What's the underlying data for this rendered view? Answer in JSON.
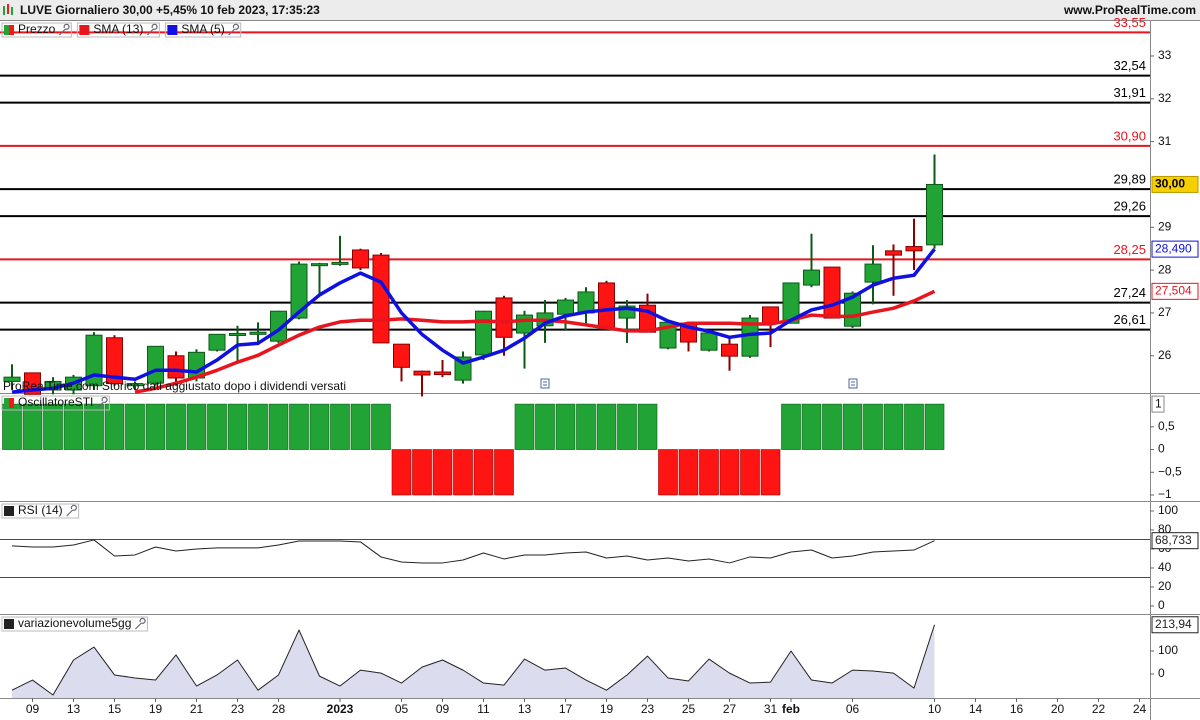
{
  "chart_data": [
    {
      "type": "candlestick",
      "title": "LUVE Giornaliero 30,00 +5,45% 10 feb 2023, 17:35:23",
      "source": "www.ProRealTime.com",
      "note": "ProRealTime.com Storico dati aggiustato dopo i dividendi versati",
      "ylim": [
        25.13,
        33.84
      ],
      "yticks": [
        26,
        27,
        28,
        29,
        31,
        32,
        33
      ],
      "levels": [
        {
          "value": 33.55,
          "label": "33,55",
          "color": "#e8141e"
        },
        {
          "value": 32.54,
          "label": "32,54",
          "color": "#000000"
        },
        {
          "value": 31.91,
          "label": "31,91",
          "color": "#000000"
        },
        {
          "value": 30.9,
          "label": "30,90",
          "color": "#e8141e"
        },
        {
          "value": 29.89,
          "label": "29,89",
          "color": "#000000"
        },
        {
          "value": 29.26,
          "label": "29,26",
          "color": "#000000"
        },
        {
          "value": 28.25,
          "label": "28,25",
          "color": "#e8141e"
        },
        {
          "value": 27.24,
          "label": "27,24",
          "color": "#000000"
        },
        {
          "value": 26.61,
          "label": "26,61",
          "color": "#000000"
        }
      ],
      "series": [
        {
          "name": "Prezzo",
          "up_color": "#22a336",
          "down_color": "#ff1414",
          "open": [
            25.4,
            25.6,
            25.2,
            25.2,
            25.3,
            26.42,
            25.3,
            25.36,
            26.0,
            25.48,
            26.13,
            26.48,
            26.5,
            26.34,
            26.88,
            28.12,
            28.14,
            28.47,
            28.35,
            26.27,
            25.64,
            25.62,
            25.43,
            26.02,
            27.35,
            26.53,
            26.7,
            26.97,
            27.0,
            27.7,
            26.88,
            27.18,
            26.18,
            26.76,
            26.13,
            26.27,
            25.99,
            27.14,
            26.76,
            27.65,
            28.07,
            26.69,
            27.72,
            28.45,
            28.55,
            28.59,
            null,
            null,
            null,
            null,
            null,
            null,
            null,
            null,
            null,
            null
          ],
          "high": [
            25.8,
            25.6,
            25.5,
            25.55,
            26.55,
            26.48,
            25.4,
            26.22,
            26.1,
            26.15,
            26.5,
            26.7,
            26.78,
            27.05,
            28.2,
            28.17,
            28.8,
            28.5,
            28.4,
            26.27,
            25.65,
            25.9,
            26.1,
            27.05,
            27.4,
            27.05,
            27.3,
            27.35,
            27.6,
            27.75,
            27.3,
            27.45,
            26.8,
            26.8,
            26.55,
            26.45,
            26.95,
            27.15,
            27.7,
            28.85,
            28.07,
            27.5,
            28.58,
            28.6,
            29.2,
            30.7,
            null,
            null,
            null,
            null,
            null,
            null,
            null,
            null,
            null,
            null
          ],
          "low": [
            25.2,
            25.1,
            25.1,
            25.1,
            25.2,
            25.3,
            25.2,
            25.3,
            25.3,
            25.4,
            26.1,
            25.82,
            26.25,
            26.3,
            26.85,
            27.42,
            28.1,
            28.0,
            26.3,
            25.4,
            25.05,
            25.5,
            25.35,
            25.9,
            26.0,
            25.7,
            26.3,
            26.6,
            26.7,
            26.65,
            26.3,
            26.55,
            26.15,
            26.1,
            26.1,
            25.65,
            25.95,
            26.2,
            26.75,
            27.6,
            26.88,
            26.65,
            27.2,
            27.4,
            28.0,
            28.5,
            null,
            null,
            null,
            null,
            null,
            null,
            null,
            null,
            null,
            null
          ],
          "close": [
            25.5,
            25.1,
            25.4,
            25.5,
            26.48,
            25.35,
            25.35,
            26.22,
            25.48,
            26.08,
            26.5,
            26.52,
            26.55,
            27.04,
            28.14,
            28.15,
            28.18,
            28.05,
            26.3,
            25.73,
            25.55,
            25.56,
            25.97,
            27.04,
            26.43,
            26.95,
            27.0,
            27.3,
            27.49,
            26.65,
            27.16,
            26.55,
            26.78,
            26.32,
            26.53,
            25.99,
            26.88,
            26.76,
            27.7,
            28.0,
            26.88,
            27.46,
            28.14,
            28.35,
            28.45,
            30.0,
            null,
            null,
            null,
            null,
            null,
            null,
            null,
            null,
            null,
            null
          ],
          "last_value": {
            "value": 30.0,
            "label": "30,00"
          }
        },
        {
          "name": "SMA (13)",
          "color": "#e8141e",
          "values": [
            null,
            null,
            null,
            null,
            null,
            null,
            25.15,
            25.24,
            25.36,
            25.5,
            25.66,
            25.85,
            26.01,
            26.25,
            26.48,
            26.67,
            26.79,
            26.83,
            26.83,
            26.86,
            26.83,
            26.79,
            26.79,
            26.81,
            26.79,
            26.83,
            26.83,
            26.79,
            26.72,
            26.65,
            26.58,
            26.58,
            26.67,
            26.76,
            26.76,
            26.76,
            26.74,
            26.74,
            26.83,
            26.95,
            26.92,
            26.92,
            27.02,
            27.11,
            27.28,
            27.504,
            null,
            null,
            null,
            null,
            null,
            null,
            null,
            null,
            null,
            null
          ],
          "last_value": {
            "value": 27.504,
            "label": "27,504"
          }
        },
        {
          "name": "SMA (5)",
          "color": "#1010e0",
          "values": [
            25.15,
            25.2,
            25.24,
            25.36,
            25.55,
            25.5,
            25.45,
            25.66,
            25.66,
            25.62,
            25.9,
            26.25,
            26.29,
            26.6,
            27.02,
            27.42,
            27.7,
            27.93,
            27.72,
            27.0,
            26.5,
            26.13,
            25.83,
            25.97,
            26.13,
            26.41,
            26.76,
            26.93,
            27.02,
            27.07,
            27.11,
            27.04,
            26.81,
            26.67,
            26.57,
            26.43,
            26.5,
            26.53,
            26.83,
            27.07,
            27.18,
            27.37,
            27.65,
            27.81,
            27.88,
            28.49,
            null,
            null,
            null,
            null,
            null,
            null,
            null,
            null,
            null,
            null
          ],
          "last_value": {
            "value": 28.49,
            "label": "28,490"
          }
        }
      ]
    },
    {
      "type": "bar",
      "ylim": [
        -1.11,
        1.2
      ],
      "yticks": [
        {
          "value": 0.5,
          "label": "0,5"
        },
        0,
        {
          "value": -0.5,
          "label": "−0,5"
        },
        {
          "value": -1,
          "label": "−1"
        }
      ],
      "series": [
        {
          "name": "OscillatoreSTI",
          "up_color": "#22a336",
          "down_color": "#ff1414",
          "values": [
            1,
            1,
            1,
            1,
            1,
            1,
            1,
            1,
            1,
            1,
            1,
            1,
            1,
            1,
            1,
            1,
            1,
            1,
            1,
            -1,
            -1,
            -1,
            -1,
            -1,
            -1,
            1,
            1,
            1,
            1,
            1,
            1,
            1,
            -1,
            -1,
            -1,
            -1,
            -1,
            -1,
            1,
            1,
            1,
            1,
            1,
            1,
            1,
            1,
            null,
            null,
            null,
            null,
            null,
            null,
            null,
            null,
            null,
            null
          ],
          "last_value": 1
        }
      ]
    },
    {
      "type": "line",
      "ylim": [
        -7.4,
        108.4
      ],
      "yticks": [
        0,
        20,
        40,
        60,
        80,
        100
      ],
      "levels": [
        {
          "value": 70,
          "color": "#3a3ac8"
        },
        {
          "value": 30,
          "color": "#3a3ac8"
        }
      ],
      "series": [
        {
          "name": "RSI (14)",
          "color": "#222222",
          "values": [
            63.2,
            62.1,
            62.1,
            64.2,
            69.5,
            52.6,
            53.7,
            62.1,
            57.9,
            60.0,
            61.1,
            61.1,
            61.1,
            64.2,
            68.4,
            68.4,
            68.4,
            67.4,
            51.6,
            46.3,
            45.3,
            45.3,
            48.4,
            55.8,
            49.5,
            53.7,
            53.7,
            55.8,
            56.8,
            50.5,
            52.6,
            48.4,
            50.5,
            47.4,
            49.5,
            45.3,
            51.6,
            50.5,
            56.8,
            58.9,
            50.5,
            52.6,
            56.8,
            57.9,
            58.9,
            68.733,
            null,
            null,
            null,
            null,
            null,
            null,
            null,
            null,
            null,
            null
          ],
          "last_value": {
            "value": 68.733,
            "label": "68,733"
          }
        }
      ]
    },
    {
      "type": "area",
      "ylim": [
        -104,
        252
      ],
      "yticks": [
        0,
        100
      ],
      "categories": [
        null,
        "09",
        null,
        "13",
        null,
        "15",
        null,
        "19",
        null,
        "21",
        null,
        "23",
        null,
        "28",
        null,
        null,
        "2023",
        null,
        null,
        "05",
        null,
        "09",
        null,
        "11",
        null,
        "13",
        null,
        "17",
        null,
        "19",
        null,
        "23",
        null,
        "25",
        null,
        "27",
        null,
        "31",
        "feb",
        null,
        null,
        "06",
        null,
        null,
        null,
        "10",
        null,
        "14",
        null,
        "16",
        null,
        "20",
        null,
        "22",
        null,
        "24"
      ],
      "series": [
        {
          "name": "variazionevolume5gg",
          "color": "#222222",
          "fill": "#dcdcef",
          "values": [
            -70,
            -26,
            -91,
            61,
            117,
            -4,
            -17,
            -26,
            83,
            -52,
            -4,
            61,
            -70,
            -4,
            191,
            -9,
            -52,
            17,
            4,
            -39,
            30,
            61,
            17,
            -39,
            -48,
            65,
            17,
            26,
            -26,
            -70,
            -4,
            78,
            -17,
            -30,
            65,
            4,
            -39,
            -35,
            100,
            -26,
            -39,
            17,
            13,
            4,
            -61,
            213.94,
            null,
            null,
            null,
            null,
            null,
            null,
            null,
            null,
            null,
            null
          ],
          "last_value": {
            "value": 213.94,
            "label": "213,94"
          }
        }
      ]
    }
  ]
}
